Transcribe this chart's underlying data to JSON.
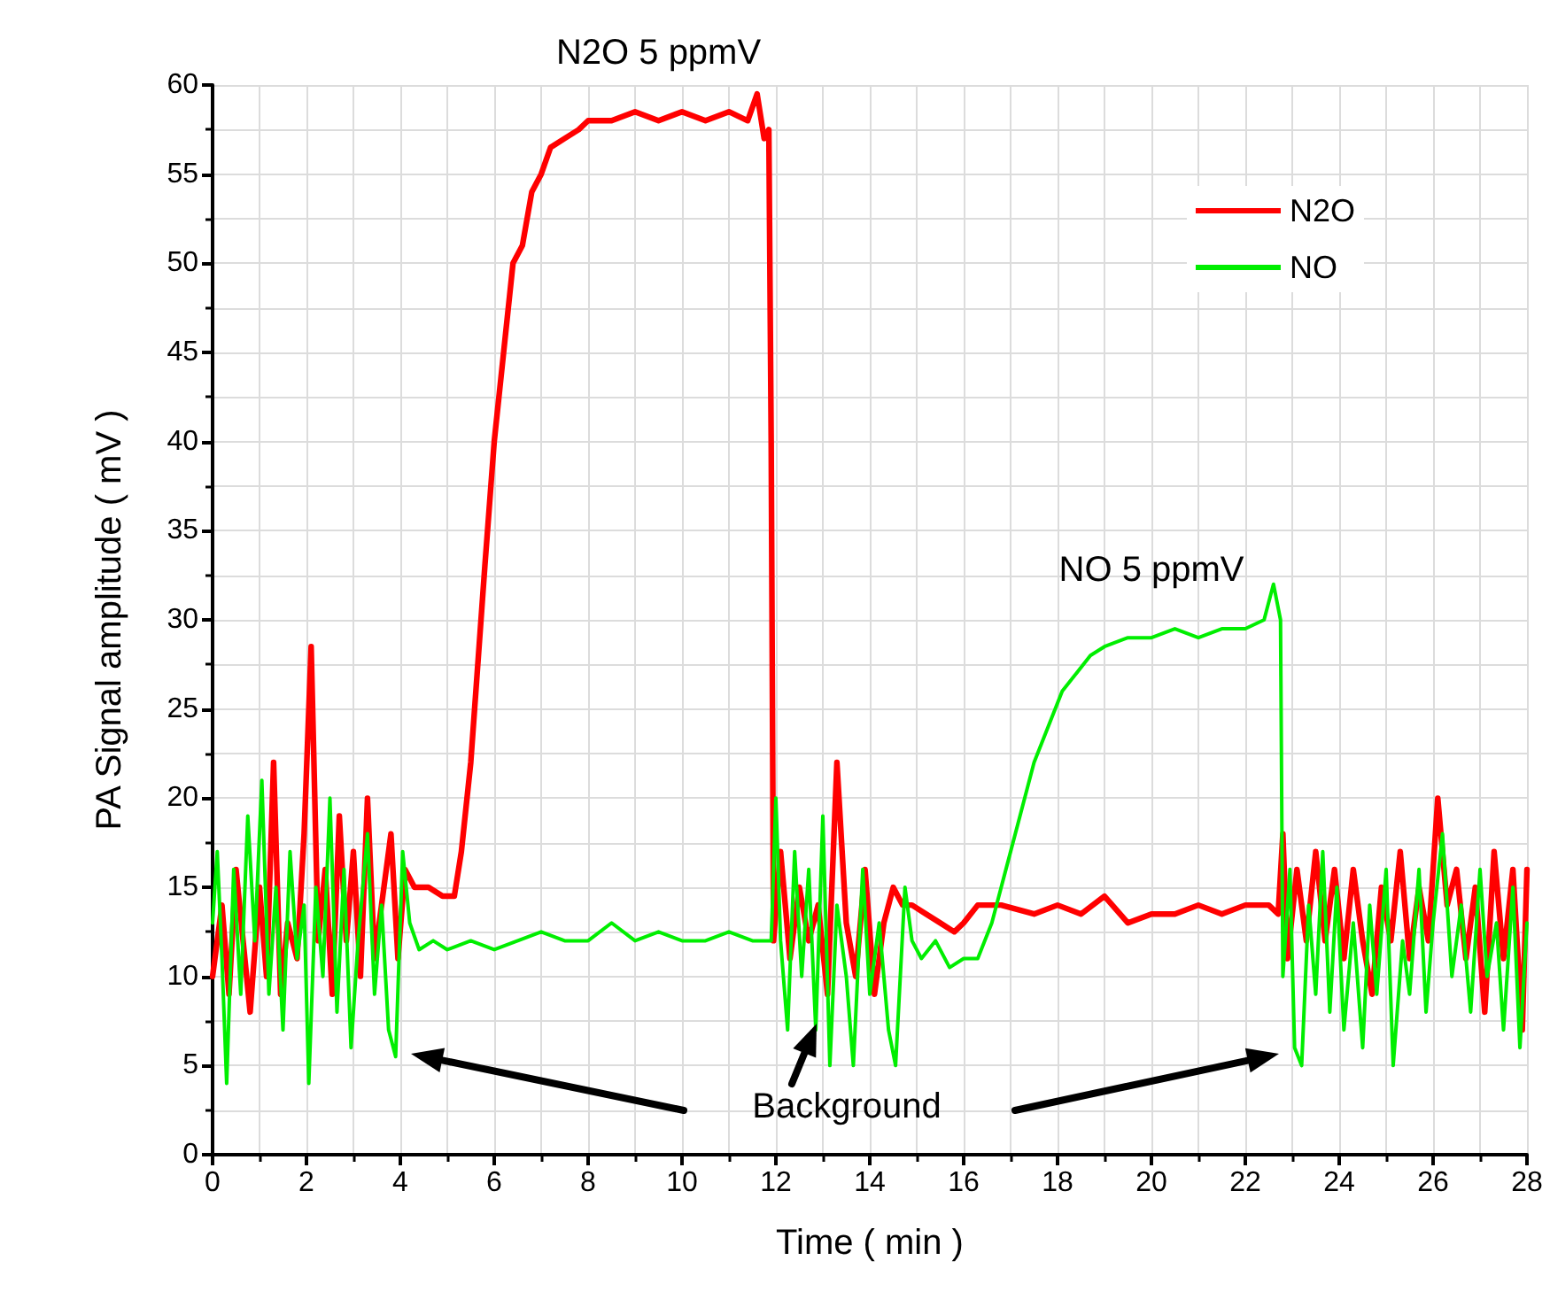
{
  "chart_data": {
    "type": "line",
    "xlabel": "Time ( min )",
    "ylabel": "PA Signal amplitude ( mV )",
    "xlim": [
      0,
      28
    ],
    "xticks": [
      0,
      2,
      4,
      6,
      8,
      10,
      12,
      14,
      16,
      18,
      20,
      22,
      24,
      26,
      28
    ],
    "ylim": [
      0,
      60
    ],
    "yticks": [
      0,
      5,
      10,
      15,
      20,
      25,
      30,
      35,
      40,
      45,
      50,
      55,
      60
    ],
    "grid": true,
    "legend": "top right",
    "marker": "none",
    "line_style": "solid",
    "annotations": [
      {
        "text": "N2O 5 ppmV",
        "x": 9.5,
        "y": 58
      },
      {
        "text": "NO 5 ppmV",
        "x": 20,
        "y": 29
      },
      "Background"
    ],
    "series": [
      {
        "name": "N2O",
        "color": "#ff0000",
        "x": [
          0,
          0.2,
          0.35,
          0.5,
          0.65,
          0.8,
          1.0,
          1.15,
          1.3,
          1.45,
          1.6,
          1.8,
          1.95,
          2.1,
          2.25,
          2.4,
          2.55,
          2.7,
          2.85,
          3.0,
          3.15,
          3.3,
          3.45,
          3.6,
          3.8,
          3.95,
          4.1,
          4.3,
          4.6,
          4.9,
          5.15,
          5.3,
          5.5,
          5.8,
          6.0,
          6.2,
          6.4,
          6.6,
          6.8,
          7.0,
          7.2,
          7.5,
          7.8,
          8.0,
          8.5,
          9.0,
          9.5,
          10.0,
          10.5,
          11.0,
          11.4,
          11.6,
          11.75,
          11.85,
          11.9,
          11.95,
          12.1,
          12.3,
          12.5,
          12.7,
          12.9,
          13.1,
          13.3,
          13.5,
          13.7,
          13.9,
          14.1,
          14.3,
          14.5,
          14.7,
          14.9,
          15.2,
          15.5,
          15.8,
          16.0,
          16.3,
          16.8,
          17.5,
          18.0,
          18.5,
          19.0,
          19.5,
          20.0,
          20.5,
          21.0,
          21.5,
          22.0,
          22.5,
          22.7,
          22.8,
          22.9,
          23.1,
          23.3,
          23.5,
          23.7,
          23.9,
          24.1,
          24.3,
          24.5,
          24.7,
          24.9,
          25.1,
          25.3,
          25.5,
          25.7,
          25.9,
          26.1,
          26.3,
          26.5,
          26.7,
          26.9,
          27.1,
          27.3,
          27.5,
          27.7,
          27.9,
          28
        ],
        "values": [
          10,
          14,
          9,
          16,
          12,
          8,
          15,
          10,
          22,
          9,
          13,
          11,
          18,
          28.5,
          12,
          16,
          9,
          19,
          12,
          17,
          10,
          20,
          11,
          14,
          18,
          11,
          16,
          15,
          15,
          14.5,
          14.5,
          17,
          22,
          33,
          40,
          45,
          50,
          51,
          54,
          55,
          56.5,
          57,
          57.5,
          58,
          58,
          58.5,
          58,
          58.5,
          58,
          58.5,
          58,
          59.5,
          57,
          57.5,
          40,
          12,
          17,
          11,
          15,
          12,
          14,
          9,
          22,
          13,
          10,
          16,
          9,
          13,
          15,
          14,
          14,
          13.5,
          13,
          12.5,
          13,
          14,
          14,
          13.5,
          14,
          13.5,
          14.5,
          13,
          13.5,
          13.5,
          14,
          13.5,
          14,
          14,
          13.5,
          18,
          11,
          16,
          12,
          17,
          12,
          16,
          11,
          16,
          12,
          9,
          15,
          12,
          17,
          11,
          15,
          12,
          20,
          14,
          16,
          11,
          15,
          8,
          17,
          11,
          16,
          7,
          16
        ]
      },
      {
        "name": "NO",
        "color": "#00ee00",
        "x": [
          0,
          0.1,
          0.2,
          0.3,
          0.45,
          0.6,
          0.75,
          0.9,
          1.05,
          1.2,
          1.35,
          1.5,
          1.65,
          1.8,
          1.95,
          2.05,
          2.2,
          2.35,
          2.5,
          2.65,
          2.8,
          2.95,
          3.1,
          3.3,
          3.45,
          3.6,
          3.75,
          3.9,
          4.05,
          4.2,
          4.4,
          4.7,
          5.0,
          5.5,
          6.0,
          6.5,
          7.0,
          7.5,
          8.0,
          8.5,
          9.0,
          9.5,
          10.0,
          10.5,
          11.0,
          11.5,
          11.9,
          12.0,
          12.1,
          12.25,
          12.4,
          12.55,
          12.7,
          12.85,
          13.0,
          13.15,
          13.3,
          13.5,
          13.65,
          13.85,
          14.0,
          14.2,
          14.4,
          14.55,
          14.75,
          14.9,
          15.1,
          15.4,
          15.7,
          16.0,
          16.3,
          16.6,
          16.9,
          17.2,
          17.5,
          17.8,
          18.1,
          18.4,
          18.7,
          19.0,
          19.5,
          20.0,
          20.5,
          21.0,
          21.5,
          22.0,
          22.4,
          22.6,
          22.75,
          22.8,
          22.95,
          23.05,
          23.2,
          23.35,
          23.5,
          23.65,
          23.8,
          23.95,
          24.1,
          24.3,
          24.5,
          24.65,
          24.8,
          25.0,
          25.15,
          25.35,
          25.5,
          25.7,
          25.85,
          26.0,
          26.2,
          26.4,
          26.6,
          26.8,
          27.0,
          27.15,
          27.35,
          27.5,
          27.7,
          27.85,
          28
        ],
        "values": [
          13,
          17,
          11,
          4,
          16,
          9,
          19,
          12,
          21,
          9,
          15,
          7,
          17,
          11,
          14,
          4,
          15,
          10,
          20,
          8,
          16,
          6,
          12,
          18,
          9,
          14,
          7,
          5.5,
          17,
          13,
          11.5,
          12,
          11.5,
          12,
          11.5,
          12,
          12.5,
          12,
          12,
          13,
          12,
          12.5,
          12,
          12,
          12.5,
          12,
          12,
          20,
          12,
          7,
          17,
          10,
          16,
          7,
          19,
          5,
          14,
          10,
          5,
          16,
          9,
          13,
          7,
          5,
          15,
          12,
          11,
          12,
          10.5,
          11,
          11,
          13,
          16,
          19,
          22,
          24,
          26,
          27,
          28,
          28.5,
          29,
          29,
          29.5,
          29,
          29.5,
          29.5,
          30,
          32,
          30,
          10,
          16,
          6,
          5,
          14,
          9,
          17,
          8,
          15,
          7,
          13,
          6,
          14,
          9,
          16,
          5,
          12,
          9,
          16,
          8,
          13,
          18,
          10,
          14,
          8,
          16,
          10,
          13,
          7,
          15,
          6,
          13
        ]
      }
    ]
  }
}
